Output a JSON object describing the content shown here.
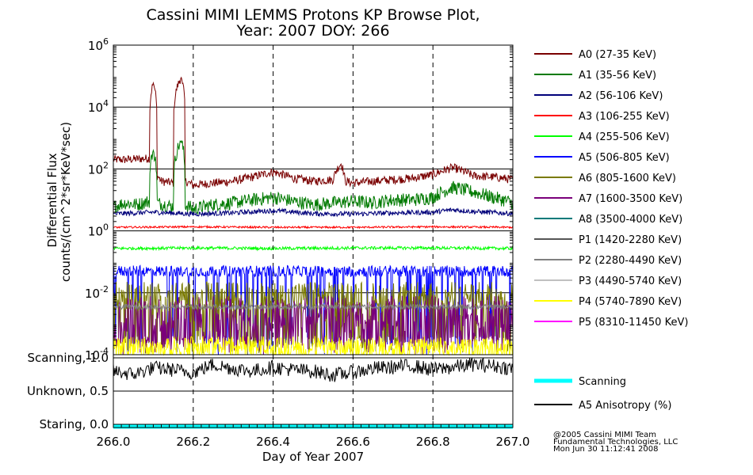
{
  "title_line1": "Cassini MIMI LEMMS Protons KP Browse Plot,",
  "title_line2": "Year: 2007 DOY: 266",
  "credits": [
    "@2005 Cassini MIMI Team",
    "Fundamental Technologies, LLC",
    "Mon Jun 30 11:12:41 2008"
  ],
  "colors": {
    "A0": "#7a0000",
    "A1": "#007a00",
    "A2": "#00007a",
    "A3": "#ff0000",
    "A4": "#00ff00",
    "A5": "#0000ff",
    "A6": "#7a7a00",
    "A7": "#7a007a",
    "A8": "#007a7a",
    "P1": "#555555",
    "P2": "#808080",
    "P3": "#c0c0c0",
    "P4": "#ffff00",
    "P5": "#ff00ff",
    "Scanning": "#00ffff",
    "Anisotropy": "#000000"
  },
  "chart_data": [
    {
      "type": "line",
      "ylabel_line1": "Differential Flux",
      "ylabel_line2": "counts/(cm^2*sr*KeV*sec)",
      "y_scale": "log",
      "ylim": [
        0.0001,
        1000000
      ],
      "y_ticks": [
        {
          "base": "10",
          "exp": "-4",
          "value": 0.0001
        },
        {
          "base": "10",
          "exp": "-2",
          "value": 0.01
        },
        {
          "base": "10",
          "exp": "0",
          "value": 1
        },
        {
          "base": "10",
          "exp": "2",
          "value": 100
        },
        {
          "base": "10",
          "exp": "4",
          "value": 10000
        },
        {
          "base": "10",
          "exp": "6",
          "value": 1000000
        }
      ],
      "xlim": [
        266.0,
        267.0
      ],
      "grid": "dashed vertical at 0.2 day, solid horizontal at decades",
      "legend_position": "right",
      "series": [
        {
          "name": "A0 (27-35 KeV)",
          "key": "A0",
          "x": [
            266.0,
            266.03,
            266.06,
            266.09,
            266.1,
            266.11,
            266.12,
            266.15,
            266.17,
            266.18,
            266.2,
            266.25,
            266.3,
            266.35,
            266.4,
            266.45,
            266.5,
            266.55,
            266.57,
            266.58,
            266.6,
            266.65,
            266.7,
            266.75,
            266.8,
            266.85,
            266.9,
            266.95,
            267.0
          ],
          "y": [
            200,
            200,
            210,
            220,
            60000,
            60,
            40,
            35,
            90000,
            40,
            30,
            35,
            40,
            55,
            80,
            50,
            40,
            45,
            150,
            40,
            35,
            40,
            45,
            50,
            65,
            110,
            60,
            55,
            45
          ]
        },
        {
          "name": "A1 (35-56 KeV)",
          "key": "A1",
          "x": [
            266.0,
            266.03,
            266.06,
            266.09,
            266.1,
            266.11,
            266.15,
            266.17,
            266.18,
            266.2,
            266.25,
            266.3,
            266.35,
            266.4,
            266.45,
            266.5,
            266.55,
            266.6,
            266.65,
            266.7,
            266.75,
            266.8,
            266.85,
            266.9,
            266.95,
            267.0
          ],
          "y": [
            6,
            8,
            7,
            9,
            400,
            8,
            6,
            800,
            7,
            5,
            7,
            8,
            10,
            12,
            9,
            7,
            8,
            9,
            8,
            10,
            10,
            12,
            25,
            18,
            12,
            8
          ]
        },
        {
          "name": "A2 (56-106 KeV)",
          "key": "A2",
          "x": [
            266.0,
            266.1,
            266.2,
            266.3,
            266.4,
            266.5,
            266.6,
            266.7,
            266.8,
            266.85,
            266.9,
            267.0
          ],
          "y": [
            3.5,
            4,
            3.5,
            3.8,
            4.5,
            3.6,
            3.5,
            3.8,
            4,
            4.8,
            4.2,
            3.6
          ]
        },
        {
          "name": "A3 (106-255 KeV)",
          "key": "A3",
          "x": [
            266.0,
            266.2,
            266.4,
            266.6,
            266.8,
            267.0
          ],
          "y": [
            1.3,
            1.35,
            1.3,
            1.3,
            1.35,
            1.3
          ]
        },
        {
          "name": "A4 (255-506 KeV)",
          "key": "A4",
          "x": [
            266.0,
            266.2,
            266.4,
            266.6,
            266.8,
            267.0
          ],
          "y": [
            0.27,
            0.28,
            0.27,
            0.28,
            0.28,
            0.27
          ]
        },
        {
          "name": "A5 (506-805 KeV)",
          "key": "A5",
          "x": [
            266.0,
            266.25,
            266.5,
            266.75,
            267.0
          ],
          "y": [
            0.05,
            0.05,
            0.05,
            0.05,
            0.05
          ]
        },
        {
          "name": "A6 (805-1600 KeV)",
          "key": "A6",
          "x": [
            266.0,
            266.25,
            266.5,
            266.75,
            267.0
          ],
          "y": [
            0.008,
            0.008,
            0.008,
            0.008,
            0.008
          ]
        },
        {
          "name": "A7 (1600-3500 KeV)",
          "key": "A7",
          "x": [
            266.0,
            266.25,
            266.5,
            266.75,
            267.0
          ],
          "y": [
            0.002,
            0.002,
            0.002,
            0.002,
            0.002
          ]
        },
        {
          "name": "A8 (3500-4000 KeV)",
          "key": "A8",
          "x": [],
          "y": []
        },
        {
          "name": "P1 (1420-2280 KeV)",
          "key": "P1",
          "x": [],
          "y": []
        },
        {
          "name": "P2 (2280-4490 KeV)",
          "key": "P2",
          "x": [
            266.0,
            266.25,
            266.5,
            266.75,
            267.0
          ],
          "y": [
            0.0035,
            0.0035,
            0.0035,
            0.0035,
            0.0035
          ]
        },
        {
          "name": "P3 (4490-5740 KeV)",
          "key": "P3",
          "x": [],
          "y": []
        },
        {
          "name": "P4 (5740-7890 KeV)",
          "key": "P4",
          "x": [
            266.0,
            266.25,
            266.5,
            266.75,
            267.0
          ],
          "y": [
            0.00015,
            0.00015,
            0.00015,
            0.00015,
            0.00015
          ]
        },
        {
          "name": "P5 (8310-11450 KeV)",
          "key": "P5",
          "x": [],
          "y": []
        }
      ]
    },
    {
      "type": "line",
      "ylim": [
        0.0,
        1.0
      ],
      "y_ticks": [
        {
          "label": "Scanning, 1.0",
          "value": 1.0
        },
        {
          "label": "Unknown, 0.5",
          "value": 0.5
        },
        {
          "label": "Staring, 0.0",
          "value": 0.0
        }
      ],
      "xlabel": "Day of Year 2007",
      "x_ticks": [
        "266.0",
        "266.2",
        "266.4",
        "266.6",
        "266.8",
        "267.0"
      ],
      "x_tick_values": [
        266.0,
        266.2,
        266.4,
        266.6,
        266.8,
        267.0
      ],
      "series": [
        {
          "name": "Scanning",
          "key": "Scanning",
          "x": [
            266.0,
            267.0
          ],
          "y": [
            0.0,
            0.0
          ]
        },
        {
          "name": "A5 Anisotropy (%)",
          "key": "Anisotropy",
          "x": [
            266.0,
            266.05,
            266.1,
            266.15,
            266.2,
            266.25,
            266.3,
            266.35,
            266.4,
            266.45,
            266.5,
            266.55,
            266.6,
            266.65,
            266.7,
            266.75,
            266.8,
            266.85,
            266.9,
            266.95,
            267.0
          ],
          "y": [
            0.8,
            0.75,
            0.85,
            0.82,
            0.78,
            0.9,
            0.84,
            0.8,
            0.86,
            0.82,
            0.8,
            0.74,
            0.78,
            0.84,
            0.86,
            0.88,
            0.82,
            0.86,
            0.9,
            0.88,
            0.84
          ]
        }
      ]
    }
  ]
}
